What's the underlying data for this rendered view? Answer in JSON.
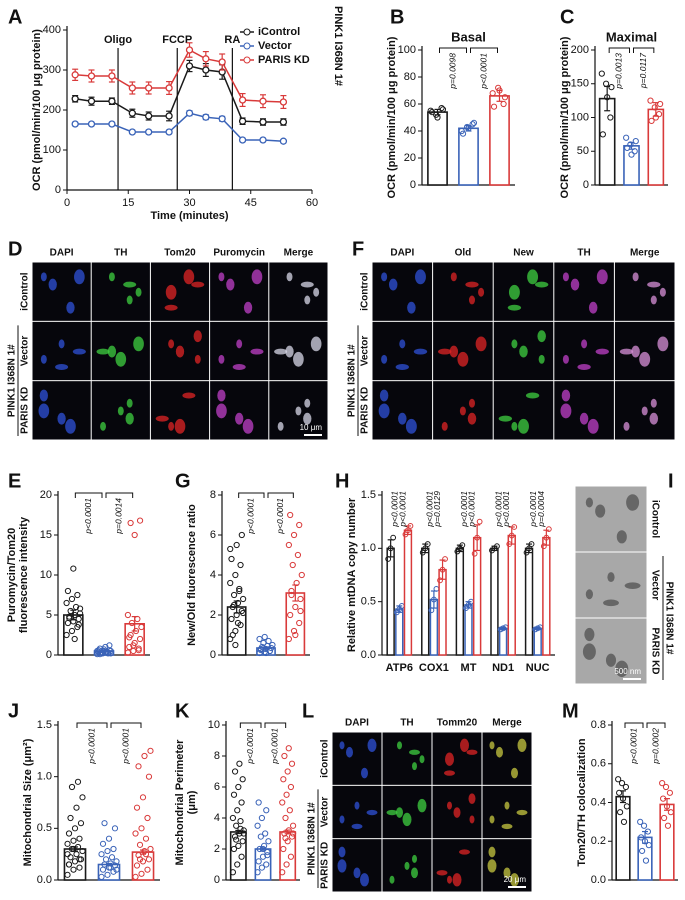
{
  "chart_data": [
    {
      "panel": "A",
      "type": "line",
      "x_label": "Time (minutes)",
      "y_label": [
        "OCR (pmol/min/100 μg protein)"
      ],
      "x": [
        2,
        6,
        11,
        16,
        20,
        25,
        30,
        34,
        38,
        43,
        48,
        53
      ],
      "xlim": [
        0,
        60
      ],
      "xticks": [
        0,
        15,
        30,
        45,
        60
      ],
      "ylim": [
        0,
        400
      ],
      "yticks": [
        0,
        100,
        200,
        300,
        400
      ],
      "series": [
        {
          "name": "iControl",
          "color": "#1a1a1a",
          "values": [
            228,
            222,
            222,
            192,
            185,
            185,
            310,
            300,
            295,
            172,
            170,
            170
          ],
          "errors": [
            8,
            10,
            8,
            10,
            10,
            12,
            14,
            16,
            18,
            8,
            8,
            8
          ]
        },
        {
          "name": "Vector",
          "color": "#3a63b8",
          "values": [
            165,
            165,
            165,
            145,
            145,
            145,
            192,
            182,
            178,
            125,
            125,
            122
          ],
          "errors": [
            4,
            4,
            4,
            4,
            4,
            4,
            6,
            6,
            6,
            4,
            4,
            4
          ]
        },
        {
          "name": "PARIS KD",
          "color": "#d93a3a",
          "values": [
            288,
            285,
            285,
            255,
            255,
            255,
            350,
            328,
            320,
            225,
            222,
            220
          ],
          "errors": [
            14,
            15,
            15,
            15,
            15,
            16,
            18,
            18,
            20,
            16,
            16,
            16
          ]
        }
      ],
      "markers": [
        {
          "label": "Oligo",
          "x": 12.5
        },
        {
          "label": "FCCP",
          "x": 27
        },
        {
          "label": "RA",
          "x": 40.5
        }
      ],
      "group_label": "PINK1 I368N 1#",
      "legend": "upper right"
    },
    {
      "panel": "B",
      "type": "dotbar",
      "title": "Basal",
      "y_label": [
        "OCR (pmol/min/100 μg protein)"
      ],
      "categories": [
        null,
        null,
        null
      ],
      "colors": [
        "#1a1a1a",
        "#3a63b8",
        "#d93a3a"
      ],
      "values": [
        54,
        42,
        66
      ],
      "errors": [
        2,
        2,
        4
      ],
      "points": [
        [
          55,
          52,
          57,
          54,
          50,
          56
        ],
        [
          40,
          43,
          45,
          38,
          42,
          46
        ],
        [
          68,
          72,
          60,
          58,
          70,
          65
        ]
      ],
      "p_values": [
        "p=0.0098",
        "p<0.0001"
      ],
      "ylim": [
        0,
        100
      ],
      "yticks": [
        0,
        20,
        40,
        60,
        80,
        100
      ]
    },
    {
      "panel": "C",
      "type": "dotbar",
      "title": "Maximal",
      "y_label": [
        "OCR (pmol/min/100 μg protein)"
      ],
      "categories": [
        null,
        null,
        null
      ],
      "colors": [
        "#1a1a1a",
        "#3a63b8",
        "#d93a3a"
      ],
      "values": [
        128,
        58,
        112
      ],
      "errors": [
        18,
        5,
        10
      ],
      "points": [
        [
          165,
          150,
          100,
          75,
          130,
          145
        ],
        [
          70,
          60,
          50,
          55,
          45,
          65
        ],
        [
          125,
          115,
          105,
          95,
          100,
          120
        ]
      ],
      "p_values": [
        "p=0.0013",
        "p=0.0117"
      ],
      "ylim": [
        0,
        200
      ],
      "yticks": [
        0,
        50,
        100,
        150,
        200
      ]
    },
    {
      "panel": "E",
      "type": "dotbar",
      "y_label": [
        "Puromycin/Tom20",
        "fluorescence intensity"
      ],
      "categories": [
        null,
        null,
        null
      ],
      "colors": [
        "#1a1a1a",
        "#3a63b8",
        "#d93a3a"
      ],
      "values": [
        5,
        0.5,
        3.9
      ],
      "errors": [
        0.6,
        0.1,
        0.9
      ],
      "points": [
        [
          2.5,
          3.0,
          3.5,
          4.0,
          4.2,
          4.5,
          4.8,
          5.0,
          5.2,
          5.5,
          6.0,
          6.5,
          7.0,
          7.5,
          8.0,
          10.8,
          3.8,
          4.6,
          2.0,
          5.8
        ],
        [
          0.1,
          0.2,
          0.3,
          0.4,
          0.5,
          0.6,
          0.8,
          1.0,
          0.2,
          0.3,
          0.4,
          0.5,
          0.3,
          0.2,
          0.6,
          0.7,
          1.2,
          0.1,
          0.4,
          0.5
        ],
        [
          0.3,
          0.5,
          0.8,
          1.0,
          1.5,
          2.0,
          2.5,
          3.0,
          3.5,
          4.0,
          4.5,
          5.0,
          1.2,
          0.6,
          2.2,
          15.0,
          16.8,
          16.5
        ]
      ],
      "p_values": [
        "p<0.0001",
        "p=0.0014"
      ],
      "ylim": [
        0,
        20
      ],
      "yticks": [
        0,
        5,
        10,
        15,
        20
      ]
    },
    {
      "panel": "G",
      "type": "dotbar",
      "y_label": [
        "New/Old fluorescence ratio"
      ],
      "categories": [
        null,
        null,
        null
      ],
      "colors": [
        "#1a1a1a",
        "#3a63b8",
        "#d93a3a"
      ],
      "values": [
        2.4,
        0.35,
        3.1
      ],
      "errors": [
        0.3,
        0.05,
        0.4
      ],
      "points": [
        [
          0.8,
          1.2,
          1.5,
          1.8,
          2.0,
          2.2,
          2.4,
          2.6,
          2.8,
          3.0,
          3.3,
          3.6,
          4.0,
          4.5,
          4.8,
          5.5,
          6.0,
          1.0,
          1.6,
          2.1,
          2.5,
          3.2,
          5.3,
          0.5
        ],
        [
          0.1,
          0.15,
          0.2,
          0.25,
          0.3,
          0.35,
          0.4,
          0.45,
          0.5,
          0.6,
          0.7,
          0.8,
          0.9,
          0.2,
          0.3,
          0.1
        ],
        [
          0.8,
          1.2,
          1.6,
          2.0,
          2.4,
          2.8,
          3.2,
          3.6,
          4.0,
          4.5,
          5.0,
          5.5,
          6.0,
          6.5,
          7.0,
          1.0,
          2.2,
          3.0
        ]
      ],
      "p_values": [
        "p<0.0001",
        "p<0.0001"
      ],
      "ylim": [
        0,
        8
      ],
      "yticks": [
        0,
        2,
        4,
        6,
        8
      ]
    },
    {
      "panel": "H",
      "type": "grouped_bar",
      "y_label": [
        "Relative mtDNA copy number"
      ],
      "categories": [
        "ATP6",
        "COX1",
        "MT",
        "ND1",
        "NUC"
      ],
      "series": [
        {
          "color": "#1a1a1a",
          "values": [
            1,
            1,
            1,
            1,
            1
          ],
          "errors": [
            0.08,
            0.04,
            0.03,
            0.02,
            0.04
          ],
          "points": [
            [
              0.9,
              1.0,
              1.1
            ],
            [
              0.96,
              1.0,
              1.04
            ],
            [
              0.97,
              1.0,
              1.03
            ],
            [
              0.98,
              1.0,
              1.02
            ],
            [
              0.96,
              1.0,
              1.04
            ]
          ]
        },
        {
          "color": "#3a63b8",
          "values": [
            0.43,
            0.52,
            0.47,
            0.25,
            0.25
          ],
          "errors": [
            0.03,
            0.08,
            0.03,
            0.01,
            0.01
          ],
          "points": [
            [
              0.4,
              0.43,
              0.46
            ],
            [
              0.42,
              0.52,
              0.62
            ],
            [
              0.44,
              0.47,
              0.5
            ],
            [
              0.24,
              0.25,
              0.26
            ],
            [
              0.24,
              0.25,
              0.26
            ]
          ]
        },
        {
          "color": "#d93a3a",
          "values": [
            1.17,
            0.8,
            1.1,
            1.12,
            1.1
          ],
          "errors": [
            0.04,
            0.09,
            0.12,
            0.08,
            0.07
          ],
          "points": [
            [
              1.13,
              1.17,
              1.21
            ],
            [
              0.7,
              0.8,
              0.9
            ],
            [
              0.95,
              1.1,
              1.25
            ],
            [
              1.04,
              1.12,
              1.2
            ],
            [
              1.02,
              1.1,
              1.18
            ]
          ]
        }
      ],
      "p_values": [
        [
          "p<0.0001",
          "p<0.0001"
        ],
        [
          "p<0.0001",
          "p=0.0129"
        ],
        [
          "p<0.0001",
          "p<0.0001"
        ],
        [
          "p<0.0001",
          "p<0.0001"
        ],
        [
          "p<0.0001",
          "p=0.0004"
        ]
      ],
      "ylim": [
        0,
        1.5
      ],
      "yticks": [
        {
          "value": 0,
          "label": "0.0"
        },
        0.5,
        {
          "value": 1,
          "label": "1.0"
        },
        1.5
      ]
    },
    {
      "panel": "J",
      "type": "dotbar",
      "y_label": [
        "Mitochondrial Size (μm²)"
      ],
      "categories": [
        null,
        null,
        null
      ],
      "colors": [
        "#1a1a1a",
        "#3a63b8",
        "#d93a3a"
      ],
      "values": [
        0.3,
        0.15,
        0.27
      ],
      "errors": [
        0.02,
        0.01,
        0.02
      ],
      "points": [
        [
          0.05,
          0.1,
          0.12,
          0.15,
          0.18,
          0.2,
          0.22,
          0.25,
          0.28,
          0.3,
          0.32,
          0.35,
          0.38,
          0.4,
          0.45,
          0.5,
          0.55,
          0.6,
          0.7,
          0.8,
          0.9,
          0.95,
          0.25,
          0.3,
          0.2,
          0.15
        ],
        [
          0.03,
          0.05,
          0.08,
          0.1,
          0.12,
          0.14,
          0.15,
          0.16,
          0.18,
          0.2,
          0.22,
          0.25,
          0.28,
          0.3,
          0.35,
          0.4,
          0.5,
          0.55,
          0.12,
          0.1
        ],
        [
          0.03,
          0.06,
          0.1,
          0.14,
          0.18,
          0.2,
          0.24,
          0.28,
          0.3,
          0.34,
          0.4,
          0.45,
          0.5,
          0.6,
          0.7,
          0.8,
          1.0,
          1.1,
          1.2,
          1.25,
          0.2,
          0.25
        ]
      ],
      "p_values": [
        "p<0.0001",
        "p<0.0001"
      ],
      "ylim": [
        0,
        1.5
      ],
      "yticks": [
        {
          "value": 0,
          "label": "0.0"
        },
        0.5,
        {
          "value": 1,
          "label": "1.0"
        },
        1.5
      ]
    },
    {
      "panel": "K",
      "type": "dotbar",
      "y_label": [
        "Mitochondrial Perimeter",
        "(μm)"
      ],
      "categories": [
        null,
        null,
        null
      ],
      "colors": [
        "#1a1a1a",
        "#3a63b8",
        "#d93a3a"
      ],
      "values": [
        3.1,
        2.0,
        3.1
      ],
      "errors": [
        0.1,
        0.08,
        0.12
      ],
      "points": [
        [
          0.5,
          1,
          1.5,
          2,
          2.2,
          2.5,
          2.8,
          3,
          3.2,
          3.5,
          3.8,
          4,
          4.5,
          5,
          5.5,
          6,
          6.5,
          7,
          7.5,
          3,
          2.6,
          3.3
        ],
        [
          0.5,
          0.8,
          1,
          1.2,
          1.5,
          1.8,
          2,
          2.2,
          2.5,
          2.8,
          3,
          3.5,
          4,
          4.5,
          5,
          2,
          1.6
        ],
        [
          0.5,
          1,
          1.5,
          2,
          2.5,
          2.8,
          3,
          3.2,
          3.5,
          4,
          4.5,
          5,
          5.5,
          6,
          6.5,
          7,
          7.5,
          8,
          8.5,
          3,
          2.7
        ]
      ],
      "p_values": [
        "p<0.0001",
        "p<0.0001"
      ],
      "ylim": [
        0,
        10
      ],
      "yticks": [
        0,
        2,
        4,
        6,
        8,
        10
      ]
    },
    {
      "panel": "M",
      "type": "dotbar",
      "y_label": [
        "Tom20/TH colocalization"
      ],
      "categories": [
        null,
        null,
        null
      ],
      "colors": [
        "#1a1a1a",
        "#3a63b8",
        "#d93a3a"
      ],
      "values": [
        0.43,
        0.22,
        0.39
      ],
      "errors": [
        0.03,
        0.03,
        0.03
      ],
      "points": [
        [
          0.52,
          0.5,
          0.48,
          0.45,
          0.42,
          0.38,
          0.35,
          0.3
        ],
        [
          0.3,
          0.28,
          0.25,
          0.22,
          0.2,
          0.18,
          0.15,
          0.1
        ],
        [
          0.5,
          0.48,
          0.45,
          0.42,
          0.38,
          0.35,
          0.32,
          0.28
        ]
      ],
      "p_values": [
        "p<0.0001",
        "p=0.0002"
      ],
      "ylim": [
        0,
        0.8
      ],
      "yticks": [
        {
          "value": 0,
          "label": "0.0"
        },
        0.2,
        0.4,
        0.6,
        0.8
      ]
    }
  ],
  "image_panels": [
    {
      "panel": "D",
      "columns": [
        "DAPI",
        "TH",
        "Tom20",
        "Puromycin",
        "Merge"
      ],
      "rows": [
        "iControl",
        "Vector",
        "PARIS KD"
      ],
      "group_label": "PINK1 I368N 1#",
      "scale_bar": "10 μm",
      "background": "#06060c",
      "colors": [
        "#2f52d8",
        "#3fd040",
        "#e02424",
        "#c040c8",
        "#d8d8e8"
      ]
    },
    {
      "panel": "F",
      "columns": [
        "DAPI",
        "Old",
        "New",
        "TH",
        "Merge"
      ],
      "rows": [
        "iControl",
        "Vector",
        "PARIS KD"
      ],
      "group_label": "PINK1 I368N 1#",
      "background": "#06060c",
      "colors": [
        "#2f52d8",
        "#e02424",
        "#3fd040",
        "#c040c8",
        "#d890d8"
      ]
    },
    {
      "panel": "I",
      "rows": [
        "iControl",
        "Vector",
        "PARIS KD"
      ],
      "group_label": "PINK1 I368N 1#",
      "scale_bar": "500 nm",
      "background": "#a8a8a8",
      "colors": [
        "#505050"
      ]
    },
    {
      "panel": "L",
      "columns": [
        "DAPI",
        "TH",
        "Tomm20",
        "Merge"
      ],
      "rows": [
        "iControl",
        "Vector",
        "PARIS KD"
      ],
      "group_label": "PINK1 I368N 1#",
      "scale_bar": "20 μm",
      "background": "#06060c",
      "colors": [
        "#2f52d8",
        "#3fd040",
        "#e02424",
        "#c8c840"
      ]
    }
  ]
}
